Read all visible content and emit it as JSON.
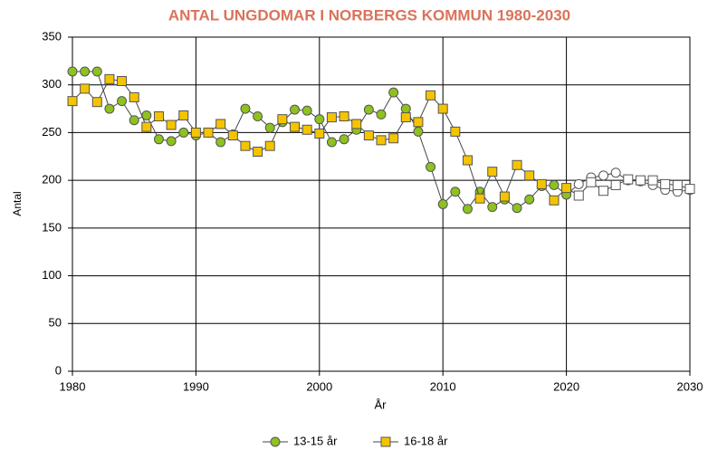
{
  "chart_data": {
    "type": "line",
    "title": "ANTAL UNGDOMAR I NORBERGS KOMMUN 1980-2030",
    "x_label": "År",
    "y_label": "Antal",
    "x": [
      1980,
      1981,
      1982,
      1983,
      1984,
      1985,
      1986,
      1987,
      1988,
      1989,
      1990,
      1991,
      1992,
      1993,
      1994,
      1995,
      1996,
      1997,
      1998,
      1999,
      2000,
      2001,
      2002,
      2003,
      2004,
      2005,
      2006,
      2007,
      2008,
      2009,
      2010,
      2011,
      2012,
      2013,
      2014,
      2015,
      2016,
      2017,
      2018,
      2019,
      2020,
      2021,
      2022,
      2023,
      2024,
      2025,
      2026,
      2027,
      2028,
      2029,
      2030
    ],
    "series": [
      {
        "name": "13-15 år",
        "color": "#8dc21f",
        "marker": "circle",
        "values": [
          314,
          314,
          314,
          275,
          283,
          263,
          268,
          243,
          241,
          250,
          247,
          250,
          240,
          248,
          275,
          267,
          255,
          261,
          274,
          273,
          264,
          240,
          243,
          253,
          274,
          269,
          292,
          275,
          251,
          214,
          175,
          188,
          170,
          188,
          172,
          180,
          171,
          180,
          194,
          195,
          185,
          196,
          203,
          205,
          208,
          200,
          199,
          195,
          190,
          188,
          190
        ]
      },
      {
        "name": "16-18 år",
        "color": "#f5c400",
        "marker": "square",
        "values": [
          283,
          296,
          282,
          306,
          304,
          287,
          256,
          267,
          258,
          268,
          250,
          250,
          259,
          247,
          236,
          230,
          236,
          264,
          256,
          253,
          249,
          266,
          267,
          259,
          247,
          242,
          244,
          266,
          261,
          289,
          275,
          251,
          221,
          181,
          209,
          183,
          216,
          205,
          196,
          179,
          192,
          184,
          198,
          189,
          195,
          201,
          200,
          200,
          196,
          195,
          191
        ]
      }
    ],
    "forecast_from": 2021,
    "forecast_color": "#ffffff",
    "xlim": [
      1980,
      2030
    ],
    "xticks": [
      1980,
      1990,
      2000,
      2010,
      2020,
      2030
    ],
    "ylim": [
      0,
      350
    ],
    "yticks": [
      0,
      50,
      100,
      150,
      200,
      250,
      300,
      350
    ],
    "grid": true,
    "legend": "bottom"
  }
}
